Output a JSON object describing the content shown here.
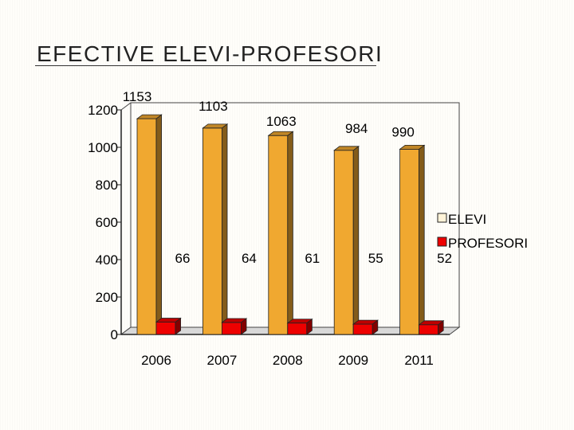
{
  "slide": {
    "title": "EFECTIVE ELEVI-PROFESORI"
  },
  "chart_data": {
    "type": "bar",
    "title": "",
    "xlabel": "",
    "ylabel": "",
    "categories": [
      "2006",
      "2007",
      "2008",
      "2009",
      "2011"
    ],
    "series": [
      {
        "name": "ELEVI",
        "values": [
          1153,
          1103,
          1063,
          984,
          990
        ],
        "color": "#f0a830"
      },
      {
        "name": "PROFESORI",
        "values": [
          66,
          64,
          61,
          55,
          52
        ],
        "color": "#ee0000"
      }
    ],
    "ylim": [
      0,
      1200
    ],
    "yticks": [
      0,
      200,
      400,
      600,
      800,
      1000,
      1200
    ],
    "grid": false,
    "legend": "right",
    "style": "3d-clustered"
  }
}
